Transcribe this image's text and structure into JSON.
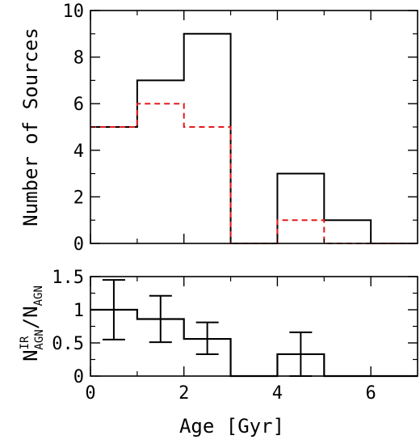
{
  "chart_data": [
    {
      "type": "histogram",
      "panel": "top",
      "bin_edges": [
        0,
        1,
        2,
        3,
        4,
        5,
        6,
        7
      ],
      "series": [
        {
          "values": [
            5,
            7,
            9,
            0,
            3,
            1,
            0
          ],
          "color": "#000000",
          "style": "solid"
        },
        {
          "values": [
            5,
            6,
            5,
            0,
            1,
            0,
            0
          ],
          "color": "#e41a1c",
          "style": "dashed"
        }
      ],
      "xlim": [
        0,
        7
      ],
      "ylim": [
        0,
        10
      ],
      "xticks": [
        0,
        2,
        4,
        6
      ],
      "yticks": [
        0,
        2,
        4,
        6,
        8,
        10
      ],
      "ytick_labels": [
        "0",
        "2",
        "4",
        "6",
        "8",
        "10"
      ],
      "ylabel": "Number of Sources"
    },
    {
      "type": "histogram",
      "panel": "bottom",
      "bin_edges": [
        0,
        1,
        2,
        3,
        4,
        5,
        6,
        7
      ],
      "values": [
        1.0,
        0.86,
        0.56,
        0,
        0.33,
        0,
        0
      ],
      "errorbars": [
        {
          "x": 0.5,
          "y": 1.0,
          "low": 0.55,
          "high": 1.45
        },
        {
          "x": 1.5,
          "y": 0.86,
          "low": 0.51,
          "high": 1.21
        },
        {
          "x": 2.5,
          "y": 0.56,
          "low": 0.33,
          "high": 0.81
        },
        {
          "x": 4.5,
          "y": 0.33,
          "low": 0.0,
          "high": 0.66
        }
      ],
      "xlim": [
        0,
        7
      ],
      "ylim": [
        0,
        1.5
      ],
      "xticks": [
        0,
        2,
        4,
        6
      ],
      "xtick_labels": [
        "0",
        "2",
        "4",
        "6"
      ],
      "yticks": [
        0,
        0.5,
        1,
        1.5
      ],
      "ytick_labels": [
        "0",
        "0.5",
        "1",
        "1.5"
      ],
      "xlabel": "Age [Gyr]",
      "ylabel": {
        "main": "N",
        "sup": "IR",
        "sub": "AGN",
        "mid": "/N",
        "sub2": "AGN"
      }
    }
  ]
}
